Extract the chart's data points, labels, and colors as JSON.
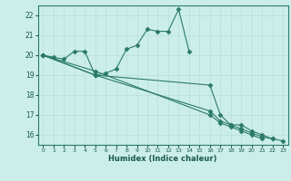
{
  "xlabel": "Humidex (Indice chaleur)",
  "ylabel": "",
  "background_color": "#cceee8",
  "grid_color": "#b8ddd8",
  "line_color": "#2a7a6a",
  "xlim": [
    -0.5,
    23.5
  ],
  "ylim": [
    15.5,
    22.5
  ],
  "yticks": [
    16,
    17,
    18,
    19,
    20,
    21,
    22
  ],
  "xticks": [
    0,
    1,
    2,
    3,
    4,
    5,
    6,
    7,
    8,
    9,
    10,
    11,
    12,
    13,
    14,
    15,
    16,
    17,
    18,
    19,
    20,
    21,
    22,
    23
  ],
  "series": [
    [
      20.0,
      19.9,
      19.8,
      20.2,
      20.2,
      19.0,
      19.1,
      19.3,
      20.3,
      20.5,
      21.3,
      21.2,
      21.2,
      22.3,
      20.2,
      null,
      null,
      null,
      null,
      null,
      null,
      null,
      null,
      null
    ],
    [
      20.0,
      null,
      null,
      null,
      null,
      19.0,
      null,
      null,
      null,
      null,
      null,
      null,
      null,
      null,
      null,
      null,
      18.5,
      17.0,
      16.5,
      16.5,
      16.2,
      16.0,
      15.8,
      15.7
    ],
    [
      20.0,
      null,
      null,
      null,
      null,
      19.0,
      null,
      null,
      null,
      null,
      null,
      null,
      null,
      null,
      null,
      null,
      17.2,
      16.7,
      16.5,
      16.3,
      16.1,
      15.9,
      15.8,
      null
    ],
    [
      20.0,
      null,
      null,
      null,
      null,
      19.2,
      null,
      null,
      null,
      null,
      null,
      null,
      null,
      null,
      null,
      null,
      17.0,
      16.6,
      16.4,
      16.2,
      16.0,
      15.8,
      null,
      null
    ]
  ]
}
